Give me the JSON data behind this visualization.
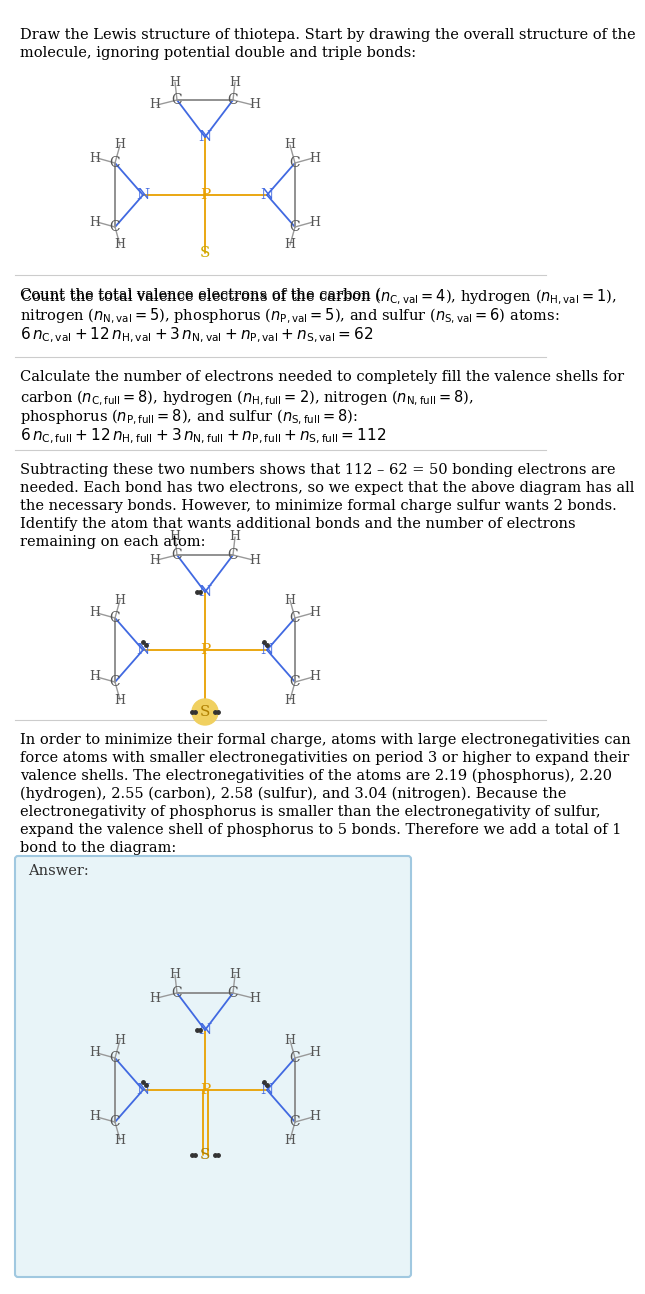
{
  "title_text": "Draw the Lewis structure of thiotepa. Start by drawing the overall structure of the molecule, ignoring potential double and triple bonds:",
  "section2_text": "Count the total valence electrons of the carbon ($n_{\\rm C,val}=4$), hydrogen ($n_{\\rm H,val}=1$), nitrogen ($n_{\\rm N,val}=5$), phosphorus ($n_{\\rm P,val}=5$), and sulfur ($n_{\\rm S,val}=6$) atoms:\n$6\\,n_{\\rm C,val}+12\\,n_{\\rm H,val}+3\\,n_{\\rm N,val}+n_{\\rm P,val}+n_{\\rm S,val}=62$",
  "section3_text": "Calculate the number of electrons needed to completely fill the valence shells for carbon ($n_{\\rm C,full}=8$), hydrogen ($n_{\\rm H,full}=2$), nitrogen ($n_{\\rm N,full}=8$), phosphorus ($n_{\\rm P,full}=8$), and sulfur ($n_{\\rm S,full}=8$):\n$6\\,n_{\\rm C,full}+12\\,n_{\\rm H,full}+3\\,n_{\\rm N,full}+n_{\\rm P,full}+n_{\\rm S,full}=112$",
  "section4_text": "Subtracting these two numbers shows that 112 – 62 = 50 bonding electrons are needed. Each bond has two electrons, so we expect that the above diagram has all the necessary bonds. However, to minimize formal charge sulfur wants 2 bonds. Identify the atom that wants additional bonds and the number of electrons remaining on each atom:",
  "section5_text": "In order to minimize their formal charge, atoms with large electronegativities can force atoms with smaller electronegativities on period 3 or higher to expand their valence shells. The electronegativities of the atoms are 2.19 (phosphorus), 2.20 (hydrogen), 2.55 (carbon), 2.58 (sulfur), and 3.04 (nitrogen). Because the electronegativity of phosphorus is smaller than the electronegativity of sulfur, expand the valence shell of phosphorus to 5 bonds. Therefore we add a total of 1 bond to the diagram:",
  "answer_label": "Answer:",
  "colors": {
    "N": "#4169e1",
    "P": "#e8a000",
    "S_plain": "#ccaa00",
    "S_highlighted": "#c8a800",
    "C": "#555555",
    "H": "#555555",
    "bond": "#888888",
    "N_bond": "#4169e1",
    "P_bond": "#e8a000",
    "background": "white",
    "answer_bg": "#e8f4f8",
    "answer_border": "#a0c8e0"
  }
}
